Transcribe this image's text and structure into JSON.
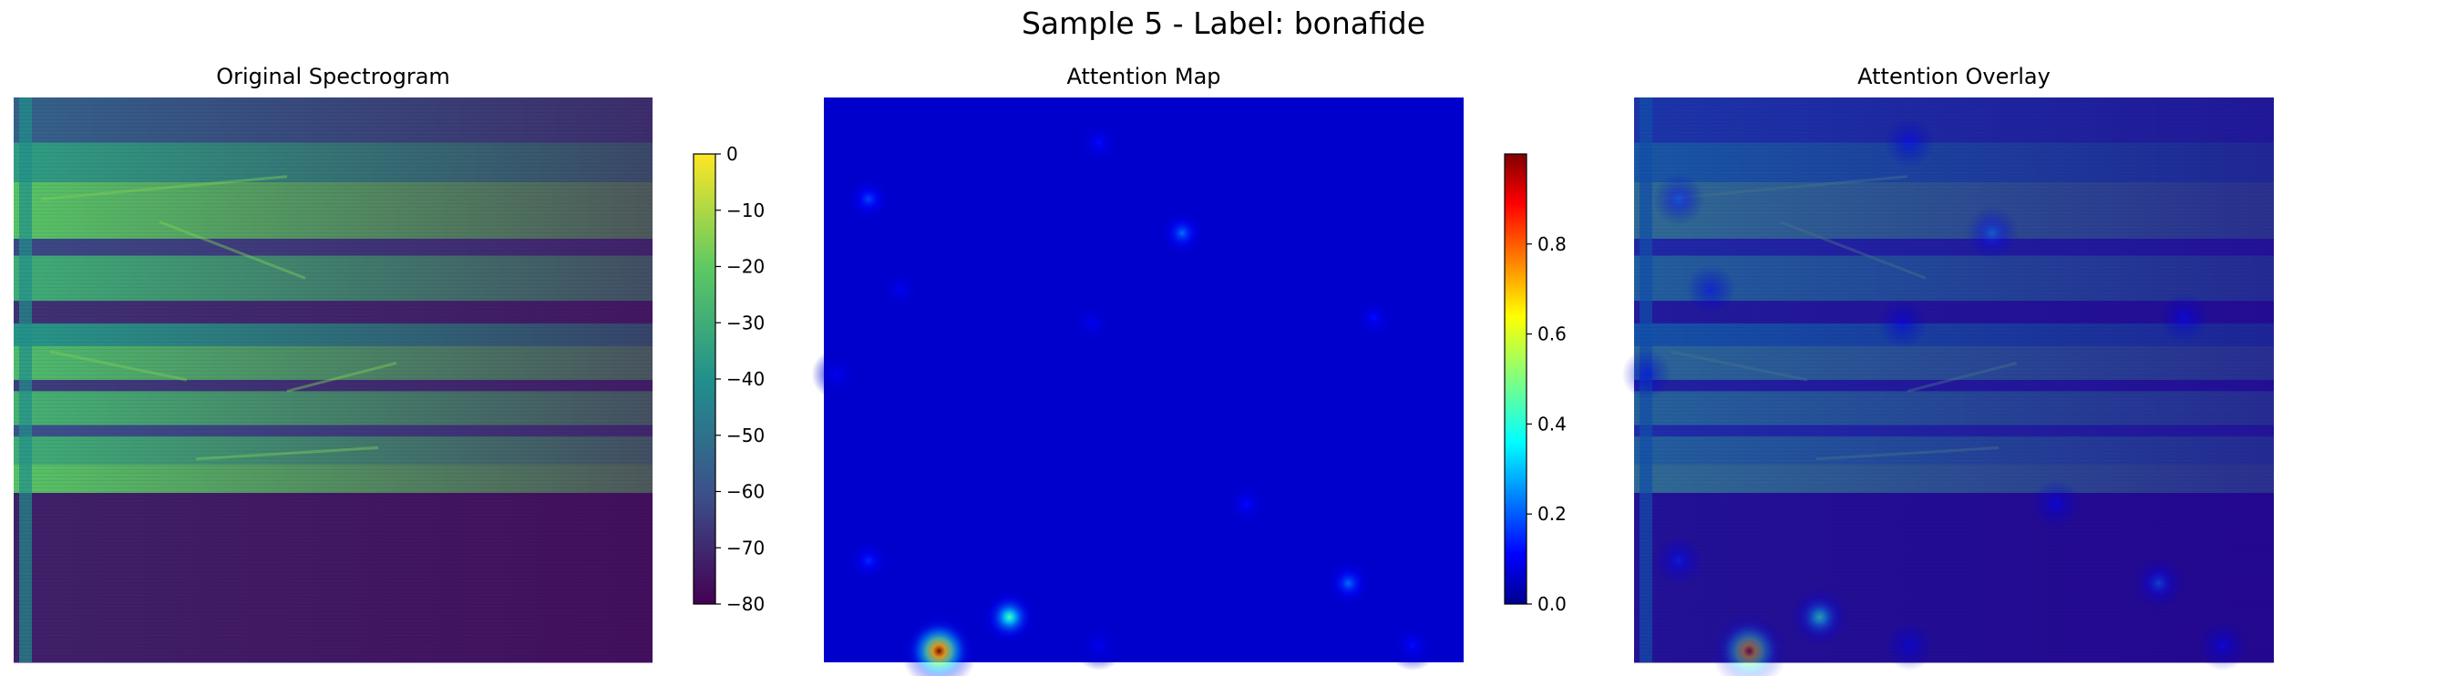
{
  "figure": {
    "title": "Sample 5 - Label: bonafide"
  },
  "chart_data": [
    {
      "type": "heatmap",
      "title": "Original Spectrogram",
      "axes": "off",
      "colormap": "viridis",
      "colorbar": {
        "range": [
          -80,
          0
        ],
        "ticks": [
          0,
          -10,
          -20,
          -30,
          -40,
          -50,
          -60,
          -70,
          -80
        ],
        "tick_labels": [
          "0",
          "−10",
          "−20",
          "−30",
          "−40",
          "−50",
          "−60",
          "−70",
          "−80"
        ]
      },
      "colors": {
        "low": "#440154",
        "mid": "#21908c",
        "high": "#fde725"
      },
      "bands": [
        {
          "from_frac": 0.0,
          "to_frac": 0.08,
          "level_db": -55
        },
        {
          "from_frac": 0.08,
          "to_frac": 0.15,
          "level_db": -35
        },
        {
          "from_frac": 0.15,
          "to_frac": 0.25,
          "level_db": -22
        },
        {
          "from_frac": 0.25,
          "to_frac": 0.28,
          "level_db": -62
        },
        {
          "from_frac": 0.28,
          "to_frac": 0.36,
          "level_db": -30
        },
        {
          "from_frac": 0.36,
          "to_frac": 0.4,
          "level_db": -68
        },
        {
          "from_frac": 0.4,
          "to_frac": 0.44,
          "level_db": -38
        },
        {
          "from_frac": 0.44,
          "to_frac": 0.5,
          "level_db": -25
        },
        {
          "from_frac": 0.5,
          "to_frac": 0.52,
          "level_db": -65
        },
        {
          "from_frac": 0.52,
          "to_frac": 0.58,
          "level_db": -28
        },
        {
          "from_frac": 0.58,
          "to_frac": 0.6,
          "level_db": -60
        },
        {
          "from_frac": 0.6,
          "to_frac": 0.65,
          "level_db": -30
        },
        {
          "from_frac": 0.65,
          "to_frac": 0.7,
          "level_db": -22
        },
        {
          "from_frac": 0.7,
          "to_frac": 1.0,
          "level_db": -72
        }
      ]
    },
    {
      "type": "heatmap",
      "title": "Attention Map",
      "axes": "off",
      "colormap": "jet",
      "colorbar": {
        "range": [
          0.0,
          1.0
        ],
        "ticks": [
          0.0,
          0.2,
          0.4,
          0.6,
          0.8
        ],
        "tick_labels": [
          "0.0",
          "0.2",
          "0.4",
          "0.6",
          "0.8"
        ]
      },
      "colors": {
        "low": "#00008f",
        "mid": "#80ff80",
        "high": "#800000"
      },
      "hotspots": [
        {
          "x_frac": 0.18,
          "y_frac": 0.98,
          "value": 1.0
        },
        {
          "x_frac": 0.29,
          "y_frac": 0.92,
          "value": 0.45
        },
        {
          "x_frac": 0.07,
          "y_frac": 0.18,
          "value": 0.18
        },
        {
          "x_frac": 0.56,
          "y_frac": 0.24,
          "value": 0.22
        },
        {
          "x_frac": 0.43,
          "y_frac": 0.08,
          "value": 0.12
        },
        {
          "x_frac": 0.82,
          "y_frac": 0.86,
          "value": 0.22
        },
        {
          "x_frac": 0.07,
          "y_frac": 0.82,
          "value": 0.15
        },
        {
          "x_frac": 0.66,
          "y_frac": 0.72,
          "value": 0.12
        },
        {
          "x_frac": 0.42,
          "y_frac": 0.4,
          "value": 0.1
        },
        {
          "x_frac": 0.86,
          "y_frac": 0.39,
          "value": 0.12
        },
        {
          "x_frac": 0.12,
          "y_frac": 0.34,
          "value": 0.1
        },
        {
          "x_frac": 0.92,
          "y_frac": 0.97,
          "value": 0.12
        },
        {
          "x_frac": 0.43,
          "y_frac": 0.97,
          "value": 0.1
        },
        {
          "x_frac": 0.02,
          "y_frac": 0.49,
          "value": 0.1
        }
      ]
    },
    {
      "type": "heatmap",
      "title": "Attention Overlay",
      "axes": "off",
      "composition": "Original Spectrogram blended with Attention Map"
    }
  ]
}
